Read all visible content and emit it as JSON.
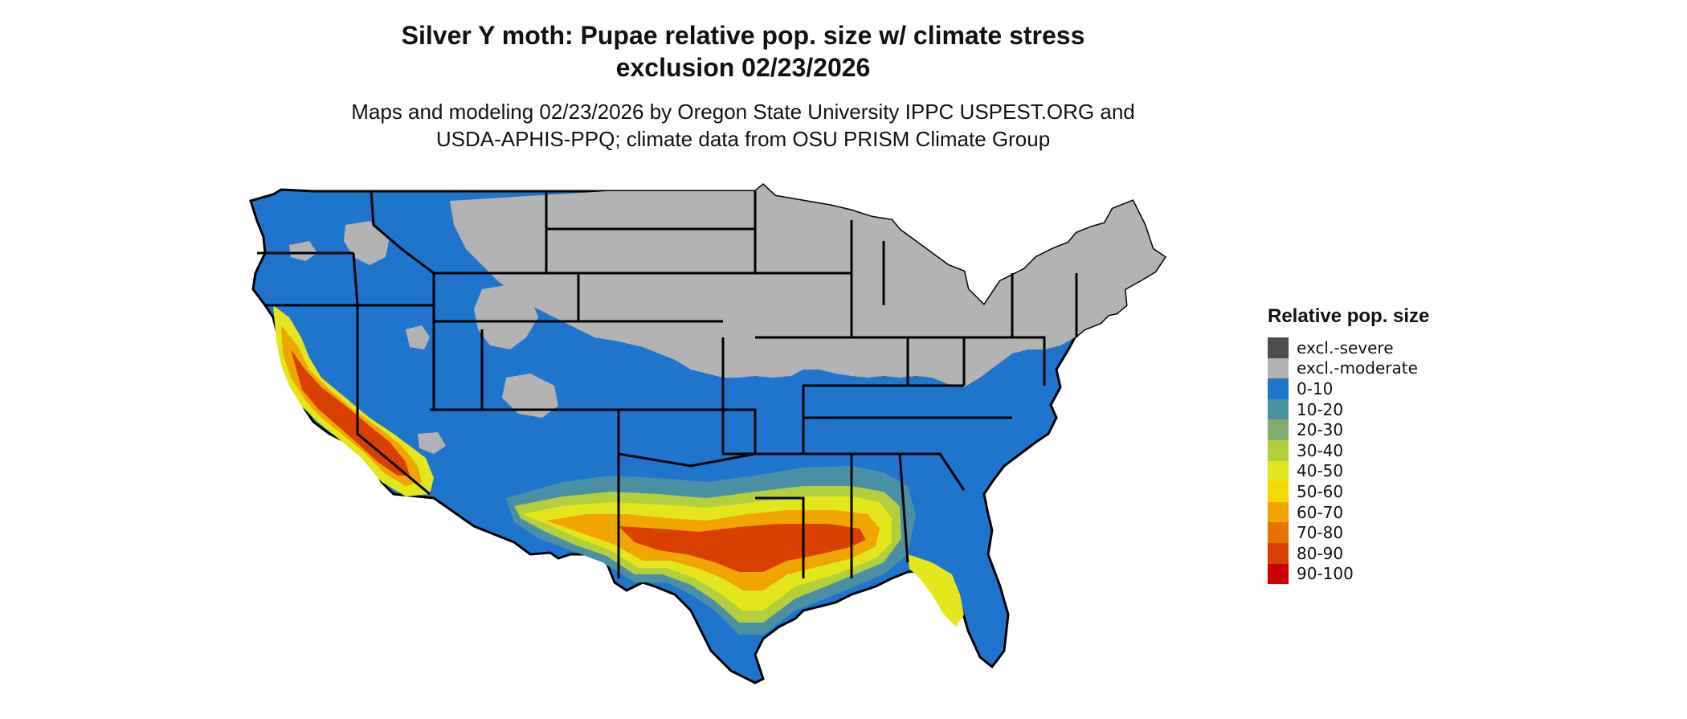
{
  "title_line1": "Silver Y moth: Pupae relative pop. size w/ climate stress",
  "title_line2": "exclusion 02/23/2026",
  "subtitle_line1": "Maps and modeling 02/23/2026 by Oregon State University IPPC USPEST.ORG and",
  "subtitle_line2": "USDA-APHIS-PPQ; climate data from OSU PRISM Climate Group",
  "legend": {
    "title": "Relative pop. size",
    "items": [
      {
        "label": "excl.-severe",
        "color": "#4d4d4d"
      },
      {
        "label": "excl.-moderate",
        "color": "#b3b3b3"
      },
      {
        "label": "0-10",
        "color": "#1f74cc"
      },
      {
        "label": "10-20",
        "color": "#4a90a4"
      },
      {
        "label": "20-30",
        "color": "#7fae6c"
      },
      {
        "label": "30-40",
        "color": "#b4cf3e"
      },
      {
        "label": "40-50",
        "color": "#e3e61c"
      },
      {
        "label": "50-60",
        "color": "#f5d800"
      },
      {
        "label": "60-70",
        "color": "#f0a500"
      },
      {
        "label": "70-80",
        "color": "#e67300"
      },
      {
        "label": "80-90",
        "color": "#d94000"
      },
      {
        "label": "90-100",
        "color": "#cc0000"
      }
    ]
  }
}
